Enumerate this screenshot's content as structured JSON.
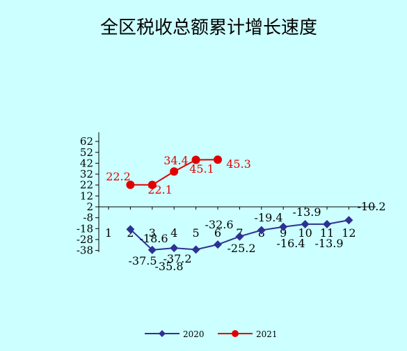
{
  "chart_data": {
    "type": "line",
    "title": "全区税收总额累计增长速度",
    "xlabel": "",
    "ylabel": "",
    "categories": [
      "1",
      "2",
      "3",
      "4",
      "5",
      "6",
      "7",
      "8",
      "9",
      "10",
      "11",
      "12"
    ],
    "y_ticks": [
      "62",
      "52",
      "42",
      "32",
      "22",
      "12",
      "2",
      "-8",
      "-18",
      "-28",
      "-38"
    ],
    "ylim": [
      -38,
      62
    ],
    "legend_position": "bottom",
    "series": [
      {
        "name": "2020",
        "color": "#2e3192",
        "marker": "diamond",
        "x": [
          2,
          3,
          4,
          5,
          6,
          7,
          8,
          9,
          10,
          11,
          12
        ],
        "values": [
          -18.6,
          -37.5,
          -35.8,
          -37.2,
          -32.6,
          -25.2,
          -19.4,
          -16.4,
          -13.9,
          -13.9,
          -10.2
        ],
        "labels": [
          "-18.6",
          "-37.5",
          "-35.8",
          "-37.2",
          "-32.6",
          "-25.2",
          "-19.4",
          "-16.4",
          "-13.9",
          "-13.9",
          "-10.2"
        ]
      },
      {
        "name": "2021",
        "color": "#e00000",
        "marker": "circle",
        "x": [
          2,
          3,
          4,
          5,
          6
        ],
        "values": [
          22.2,
          22.1,
          34.4,
          45.1,
          45.3
        ],
        "labels": [
          "22.2",
          "22.1",
          "34.4",
          "45.1",
          "45.3"
        ]
      }
    ]
  }
}
